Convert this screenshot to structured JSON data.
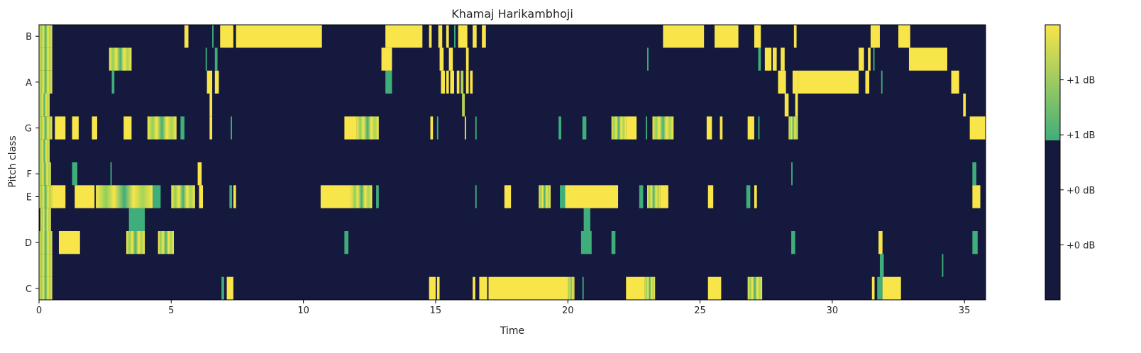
{
  "chart_data": {
    "type": "heatmap",
    "title": "Khamaj Harikambhoji",
    "xlabel": "Time",
    "ylabel": "Pitch class",
    "xlim": [
      0,
      35.8
    ],
    "x_ticks": [
      0,
      5,
      10,
      15,
      20,
      25,
      30,
      35
    ],
    "y_ticks": [
      "C",
      "D",
      "E",
      "F",
      "G",
      "A",
      "B"
    ],
    "pitch_rows": [
      "C",
      "C#",
      "D",
      "D#",
      "E",
      "F",
      "F#",
      "G",
      "G#",
      "A",
      "A#",
      "B"
    ],
    "colors": {
      "low": "#14193d",
      "mid": "#3fae7a",
      "high": "#f8e54a"
    },
    "colorbar": {
      "tick_labels": [
        "+0 dB",
        "+0 dB",
        "+1 dB",
        "+1 dB"
      ],
      "threshold": 0.58
    },
    "segments": {
      "C": [
        [
          0.0,
          0.5,
          "mixed"
        ],
        [
          6.9,
          7.0,
          "mid"
        ],
        [
          7.1,
          7.35,
          "high"
        ],
        [
          14.75,
          15.0,
          "high"
        ],
        [
          15.05,
          15.15,
          "high"
        ],
        [
          16.4,
          16.5,
          "high"
        ],
        [
          16.65,
          16.95,
          "high"
        ],
        [
          17.0,
          20.0,
          "high"
        ],
        [
          20.0,
          20.25,
          "mixed"
        ],
        [
          20.55,
          20.6,
          "mid"
        ],
        [
          22.2,
          22.9,
          "high"
        ],
        [
          22.9,
          23.3,
          "mixed"
        ],
        [
          25.3,
          25.8,
          "high"
        ],
        [
          26.8,
          27.35,
          "mixed"
        ],
        [
          31.5,
          31.6,
          "high"
        ],
        [
          31.7,
          31.9,
          "mid"
        ],
        [
          31.9,
          32.6,
          "high"
        ]
      ],
      "C#": [
        [
          0.0,
          0.5,
          "mixed"
        ],
        [
          31.8,
          31.95,
          "mid"
        ],
        [
          34.15,
          34.2,
          "mid"
        ]
      ],
      "D": [
        [
          0.0,
          0.5,
          "mixed"
        ],
        [
          0.75,
          1.55,
          "high"
        ],
        [
          3.3,
          4.0,
          "mixed"
        ],
        [
          4.5,
          5.1,
          "mixed"
        ],
        [
          11.55,
          11.7,
          "mid"
        ],
        [
          20.5,
          20.9,
          "mid"
        ],
        [
          21.65,
          21.8,
          "mid"
        ],
        [
          28.45,
          28.6,
          "mid"
        ],
        [
          31.75,
          31.9,
          "high"
        ],
        [
          35.3,
          35.5,
          "mid"
        ]
      ],
      "D#": [
        [
          0.05,
          0.45,
          "mixed"
        ],
        [
          3.4,
          4.0,
          "mid"
        ],
        [
          20.6,
          20.85,
          "mid"
        ]
      ],
      "E": [
        [
          0.0,
          0.5,
          "mixed"
        ],
        [
          0.5,
          1.0,
          "high"
        ],
        [
          1.35,
          2.1,
          "high"
        ],
        [
          2.15,
          4.3,
          "mixed"
        ],
        [
          4.3,
          4.6,
          "mid"
        ],
        [
          5.0,
          5.9,
          "mixed"
        ],
        [
          6.05,
          6.2,
          "high"
        ],
        [
          7.2,
          7.3,
          "mid"
        ],
        [
          7.35,
          7.45,
          "high"
        ],
        [
          10.65,
          11.8,
          "high"
        ],
        [
          11.8,
          12.6,
          "mixed"
        ],
        [
          12.75,
          12.85,
          "mid"
        ],
        [
          16.5,
          16.55,
          "mid"
        ],
        [
          17.6,
          17.85,
          "high"
        ],
        [
          18.9,
          19.35,
          "mixed"
        ],
        [
          19.7,
          19.9,
          "mid"
        ],
        [
          19.9,
          21.9,
          "high"
        ],
        [
          22.7,
          22.85,
          "mid"
        ],
        [
          23.0,
          23.5,
          "mixed"
        ],
        [
          23.5,
          23.8,
          "high"
        ],
        [
          25.3,
          25.5,
          "high"
        ],
        [
          26.75,
          26.9,
          "mid"
        ],
        [
          27.05,
          27.15,
          "high"
        ],
        [
          35.3,
          35.6,
          "high"
        ]
      ],
      "F": [
        [
          0.0,
          0.45,
          "mixed"
        ],
        [
          1.25,
          1.45,
          "mid"
        ],
        [
          2.7,
          2.75,
          "mid"
        ],
        [
          6.0,
          6.15,
          "high"
        ],
        [
          28.45,
          28.5,
          "mid"
        ],
        [
          35.3,
          35.45,
          "mid"
        ]
      ],
      "F#": [
        [
          0.0,
          0.4,
          "mixed"
        ]
      ],
      "G": [
        [
          0.0,
          0.5,
          "mixed"
        ],
        [
          0.6,
          1.0,
          "high"
        ],
        [
          1.25,
          1.5,
          "high"
        ],
        [
          2.0,
          2.2,
          "high"
        ],
        [
          3.2,
          3.5,
          "high"
        ],
        [
          4.1,
          5.2,
          "mixed"
        ],
        [
          5.35,
          5.5,
          "mid"
        ],
        [
          6.45,
          6.55,
          "high"
        ],
        [
          7.25,
          7.3,
          "mid"
        ],
        [
          11.55,
          12.0,
          "high"
        ],
        [
          12.0,
          12.85,
          "mixed"
        ],
        [
          14.8,
          14.9,
          "high"
        ],
        [
          15.05,
          15.1,
          "mid"
        ],
        [
          16.1,
          16.15,
          "high"
        ],
        [
          16.5,
          16.55,
          "mid"
        ],
        [
          19.65,
          19.75,
          "mid"
        ],
        [
          20.55,
          20.7,
          "mid"
        ],
        [
          21.65,
          22.2,
          "mixed"
        ],
        [
          22.2,
          22.6,
          "high"
        ],
        [
          22.95,
          23.0,
          "mid"
        ],
        [
          23.2,
          24.0,
          "mixed"
        ],
        [
          25.25,
          25.45,
          "high"
        ],
        [
          25.75,
          25.85,
          "high"
        ],
        [
          26.8,
          27.05,
          "high"
        ],
        [
          27.2,
          27.25,
          "mid"
        ],
        [
          28.35,
          28.7,
          "mixed"
        ],
        [
          35.2,
          35.8,
          "high"
        ]
      ],
      "G#": [
        [
          0.0,
          0.4,
          "mixed"
        ],
        [
          6.45,
          6.55,
          "high"
        ],
        [
          16.0,
          16.1,
          "mixed"
        ],
        [
          28.2,
          28.35,
          "high"
        ],
        [
          28.6,
          28.7,
          "high"
        ],
        [
          34.95,
          35.05,
          "high"
        ]
      ],
      "A": [
        [
          0.0,
          0.5,
          "mixed"
        ],
        [
          2.75,
          2.85,
          "mid"
        ],
        [
          6.35,
          6.55,
          "high"
        ],
        [
          6.65,
          6.8,
          "high"
        ],
        [
          13.1,
          13.35,
          "mid"
        ],
        [
          15.2,
          15.35,
          "high"
        ],
        [
          15.4,
          15.5,
          "high"
        ],
        [
          15.55,
          15.7,
          "high"
        ],
        [
          15.8,
          15.9,
          "high"
        ],
        [
          15.95,
          16.05,
          "mixed"
        ],
        [
          16.15,
          16.25,
          "high"
        ],
        [
          16.3,
          16.4,
          "high"
        ],
        [
          27.95,
          28.25,
          "high"
        ],
        [
          28.5,
          28.7,
          "high"
        ],
        [
          28.7,
          31.0,
          "high"
        ],
        [
          31.25,
          31.4,
          "high"
        ],
        [
          31.85,
          31.9,
          "mid"
        ],
        [
          34.5,
          34.8,
          "high"
        ]
      ],
      "A#": [
        [
          0.0,
          0.5,
          "mixed"
        ],
        [
          2.65,
          3.5,
          "mixed"
        ],
        [
          6.3,
          6.35,
          "mid"
        ],
        [
          6.65,
          6.75,
          "mid"
        ],
        [
          12.95,
          13.35,
          "high"
        ],
        [
          15.15,
          15.3,
          "high"
        ],
        [
          15.5,
          15.65,
          "high"
        ],
        [
          16.15,
          16.25,
          "high"
        ],
        [
          23.0,
          23.05,
          "mid"
        ],
        [
          27.2,
          27.3,
          "mid"
        ],
        [
          27.45,
          27.7,
          "high"
        ],
        [
          27.75,
          27.9,
          "high"
        ],
        [
          28.05,
          28.2,
          "high"
        ],
        [
          31.0,
          31.2,
          "high"
        ],
        [
          31.35,
          31.45,
          "high"
        ],
        [
          31.55,
          31.6,
          "mid"
        ],
        [
          32.9,
          34.35,
          "high"
        ]
      ],
      "B": [
        [
          0.0,
          0.5,
          "mixed"
        ],
        [
          5.5,
          5.65,
          "high"
        ],
        [
          6.55,
          6.6,
          "mid"
        ],
        [
          6.85,
          7.35,
          "high"
        ],
        [
          7.45,
          10.7,
          "high"
        ],
        [
          13.1,
          14.5,
          "high"
        ],
        [
          14.75,
          14.85,
          "high"
        ],
        [
          15.1,
          15.25,
          "high"
        ],
        [
          15.4,
          15.5,
          "high"
        ],
        [
          15.7,
          15.75,
          "mid"
        ],
        [
          15.85,
          16.2,
          "high"
        ],
        [
          16.4,
          16.55,
          "high"
        ],
        [
          16.75,
          16.9,
          "high"
        ],
        [
          23.6,
          25.15,
          "high"
        ],
        [
          25.55,
          26.45,
          "high"
        ],
        [
          27.05,
          27.3,
          "high"
        ],
        [
          28.55,
          28.65,
          "high"
        ],
        [
          31.45,
          31.8,
          "high"
        ],
        [
          32.5,
          32.95,
          "high"
        ]
      ]
    }
  }
}
